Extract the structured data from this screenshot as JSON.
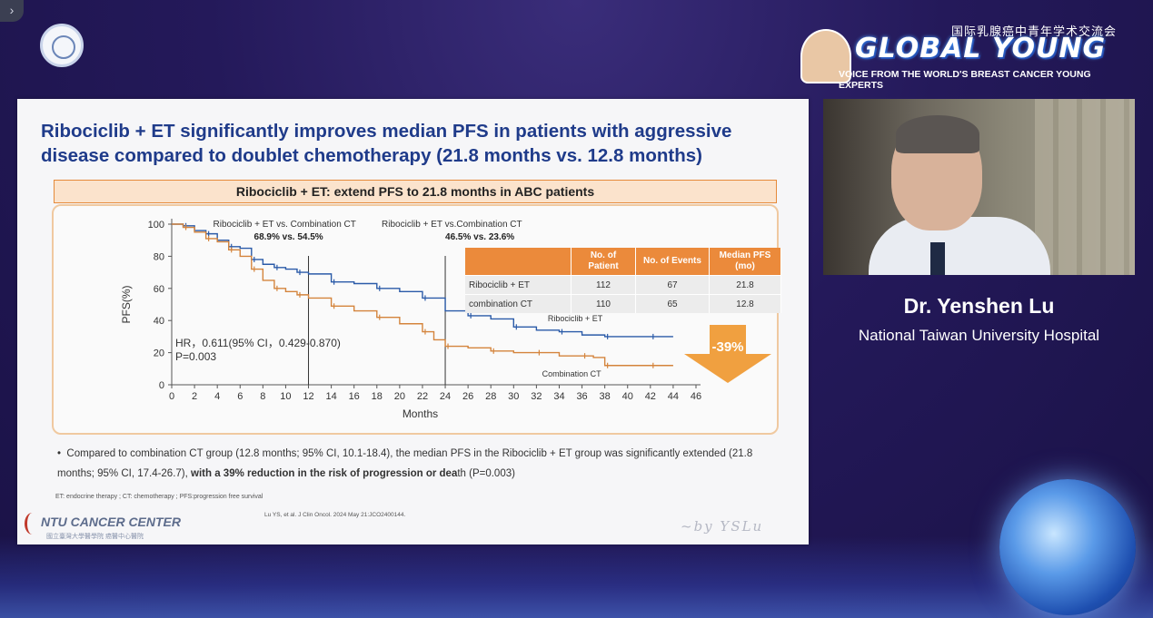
{
  "header": {
    "brand_cn": "国际乳腺癌中青年学术交流会",
    "brand_main": "GLOBAL YOUNG",
    "brand_sub": "VOICE FROM THE WORLD'S BREAST CANCER YOUNG EXPERTS"
  },
  "slide": {
    "title": "Ribociclib + ET significantly improves median PFS in patients with aggressive disease compared to doublet chemotherapy (21.8 months vs. 12.8 months)",
    "banner": "Ribociclib + ET: extend PFS to 21.8 months in ABC patients",
    "bullet_plain": "Compared to combination CT group (12.8 months;  95% CI, 10.1-18.4), the median PFS in the Ribociclib + ET group was significantly extended (21.8 months;  95% CI, 17.4-26.7), ",
    "bullet_bold": "with a 39% reduction in the risk of progression or dea",
    "bullet_tail": "th (P=0.003)",
    "abbreviations": "ET: endocrine therapy ; CT: chemotherapy ; PFS:progression free survival",
    "reference": "Lu YS, et al. J Clin Oncol. 2024 May 21:JCO2400144.",
    "ntu_logo": "NTU CANCER CENTER",
    "ntu_sub": "國立臺灣大學醫學院  癌醫中心醫院",
    "signature": "~by YSLu",
    "arrow_label": "-39%",
    "table": {
      "headers": [
        "",
        "No. of Patient",
        "No. of Events",
        "Median PFS (mo)"
      ],
      "rows": [
        [
          "Ribociclib + ET",
          "112",
          "67",
          "21.8"
        ],
        [
          "combination CT",
          "110",
          "65",
          "12.8"
        ]
      ]
    }
  },
  "chart_data": {
    "type": "line",
    "xlabel": "Months",
    "ylabel": "PFS(%)",
    "xlim": [
      0,
      46
    ],
    "ylim": [
      0,
      100
    ],
    "xticks": [
      0,
      2,
      4,
      6,
      8,
      10,
      12,
      14,
      16,
      18,
      20,
      22,
      24,
      26,
      28,
      30,
      32,
      34,
      36,
      38,
      40,
      42,
      44,
      46
    ],
    "yticks": [
      0,
      20,
      40,
      60,
      80,
      100
    ],
    "annotations": [
      {
        "text": "Ribociclib + ET vs. Combination CT",
        "value": "68.9% vs. 54.5%",
        "at_month": 12
      },
      {
        "text": "Ribociclib + ET vs.Combination CT",
        "value": "46.5% vs. 23.6%",
        "at_month": 24
      }
    ],
    "hr_text": "HR，0.611(95% CI，0.429-0.870)",
    "p_text": "P=0.003",
    "series": [
      {
        "name": "Ribociclib + ET",
        "color": "#2a5aa8",
        "x": [
          0,
          1,
          2,
          3,
          4,
          5,
          6,
          7,
          8,
          9,
          10,
          11,
          12,
          14,
          16,
          18,
          20,
          22,
          24,
          26,
          28,
          30,
          32,
          34,
          36,
          38,
          40,
          42,
          44
        ],
        "values": [
          100,
          99,
          96,
          94,
          90,
          86,
          85,
          78,
          75,
          73,
          72,
          70,
          69,
          64,
          63,
          60,
          58,
          54,
          46,
          43,
          41,
          36,
          34,
          33,
          31,
          30,
          30,
          30,
          30
        ]
      },
      {
        "name": "Combination CT",
        "color": "#d4843c",
        "x": [
          0,
          1,
          2,
          3,
          4,
          5,
          6,
          7,
          8,
          9,
          10,
          11,
          12,
          14,
          16,
          18,
          20,
          22,
          23,
          24,
          26,
          28,
          30,
          32,
          34,
          36,
          37,
          38,
          40,
          42,
          44
        ],
        "values": [
          100,
          98,
          95,
          91,
          89,
          84,
          80,
          72,
          65,
          60,
          58,
          56,
          54,
          49,
          46,
          42,
          38,
          33,
          28,
          24,
          23,
          21,
          20,
          20,
          18,
          18,
          17,
          12,
          12,
          12,
          12
        ]
      }
    ]
  },
  "speaker": {
    "name": "Dr. Yenshen Lu",
    "organization": "National Taiwan University Hospital"
  },
  "collapse_icon": "chevron-right-icon"
}
